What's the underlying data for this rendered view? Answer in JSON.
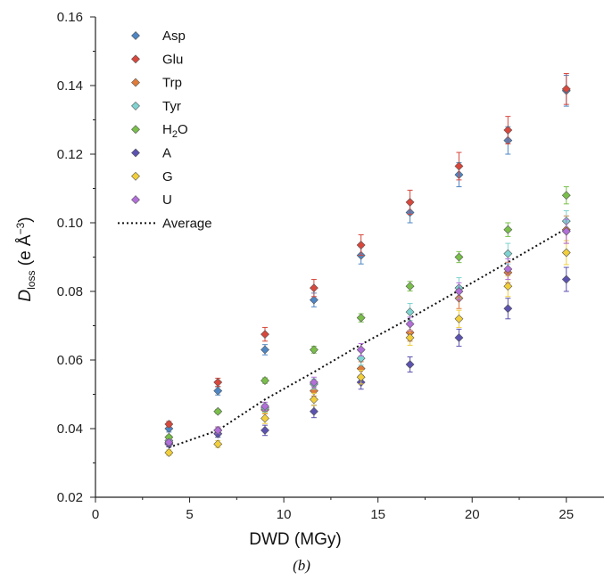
{
  "panel_label": "(b)",
  "chart_data": {
    "type": "scatter",
    "xlabel": "DWD (MGy)",
    "ylabel": {
      "main": "D",
      "sub": "loss",
      "unit_prefix": " (e Å",
      "unit_exp": "−3",
      "unit_suffix": ")"
    },
    "xlim": [
      0,
      27
    ],
    "ylim": [
      0.02,
      0.16
    ],
    "xticks": [
      0,
      5,
      10,
      15,
      20,
      25
    ],
    "yticks": [
      0.02,
      0.04,
      0.06,
      0.08,
      0.1,
      0.12,
      0.14,
      0.16
    ],
    "ytick_labels": [
      "0.02",
      "0.04",
      "0.06",
      "0.08",
      "0.10",
      "0.12",
      "0.14",
      "0.16"
    ],
    "grid": false,
    "legend_placement": "top-left",
    "x": [
      3.9,
      6.5,
      9.0,
      11.6,
      14.1,
      16.7,
      19.3,
      21.9,
      25.0
    ],
    "series": [
      {
        "name": "Asp",
        "color": "#4e86c4",
        "values": [
          0.04,
          0.051,
          0.063,
          0.0775,
          0.0905,
          0.103,
          0.114,
          0.124,
          0.1385
        ],
        "errors": [
          0.001,
          0.0012,
          0.0015,
          0.002,
          0.0025,
          0.003,
          0.0035,
          0.004,
          0.0045
        ]
      },
      {
        "name": "Glu",
        "color": "#d8473c",
        "values": [
          0.0413,
          0.0535,
          0.0675,
          0.081,
          0.0935,
          0.106,
          0.1165,
          0.127,
          0.139
        ],
        "errors": [
          0.0008,
          0.0012,
          0.002,
          0.0025,
          0.003,
          0.0035,
          0.004,
          0.004,
          0.0045
        ]
      },
      {
        "name": "Trp",
        "color": "#e07b39",
        "values": [
          0.0358,
          0.0395,
          0.0455,
          0.051,
          0.0575,
          0.068,
          0.078,
          0.0855,
          0.098
        ],
        "errors": [
          0.0008,
          0.001,
          0.0012,
          0.0015,
          0.002,
          0.0025,
          0.003,
          0.003,
          0.004
        ]
      },
      {
        "name": "Tyr",
        "color": "#7fd3d0",
        "values": [
          0.0365,
          0.0385,
          0.046,
          0.053,
          0.0605,
          0.074,
          0.081,
          0.091,
          0.1005
        ],
        "errors": [
          0.0008,
          0.001,
          0.0012,
          0.0015,
          0.002,
          0.0025,
          0.003,
          0.003,
          0.003
        ]
      },
      {
        "name": "H₂O",
        "color": "#79bf4a",
        "values": [
          0.0375,
          0.045,
          0.054,
          0.063,
          0.0723,
          0.0815,
          0.09,
          0.098,
          0.108
        ],
        "errors": [
          0.0005,
          0.0006,
          0.0008,
          0.001,
          0.0012,
          0.0014,
          0.0016,
          0.002,
          0.0025
        ]
      },
      {
        "name": "A",
        "color": "#5b52b0",
        "values": [
          0.0355,
          0.0385,
          0.0395,
          0.045,
          0.0535,
          0.0587,
          0.0665,
          0.075,
          0.0835
        ],
        "errors": [
          0.0008,
          0.001,
          0.0015,
          0.0018,
          0.002,
          0.0022,
          0.0025,
          0.003,
          0.0035
        ]
      },
      {
        "name": "G",
        "color": "#f2cf3a",
        "values": [
          0.033,
          0.0355,
          0.043,
          0.0485,
          0.055,
          0.0665,
          0.072,
          0.0815,
          0.0913
        ],
        "errors": [
          0.0008,
          0.001,
          0.0015,
          0.0018,
          0.002,
          0.0022,
          0.0025,
          0.003,
          0.0035
        ]
      },
      {
        "name": "U",
        "color": "#b26fd9",
        "values": [
          0.036,
          0.0395,
          0.0465,
          0.0535,
          0.063,
          0.0705,
          0.08,
          0.0865,
          0.0975
        ],
        "errors": [
          0.0008,
          0.001,
          0.0012,
          0.0015,
          0.0018,
          0.002,
          0.0025,
          0.003,
          0.0035
        ]
      }
    ],
    "average": {
      "name": "Average",
      "style": "dotted",
      "color": "#111111",
      "values": [
        0.0345,
        0.0395,
        0.0485,
        0.0565,
        0.0645,
        0.0722,
        0.0803,
        0.0885,
        0.0983
      ]
    }
  }
}
